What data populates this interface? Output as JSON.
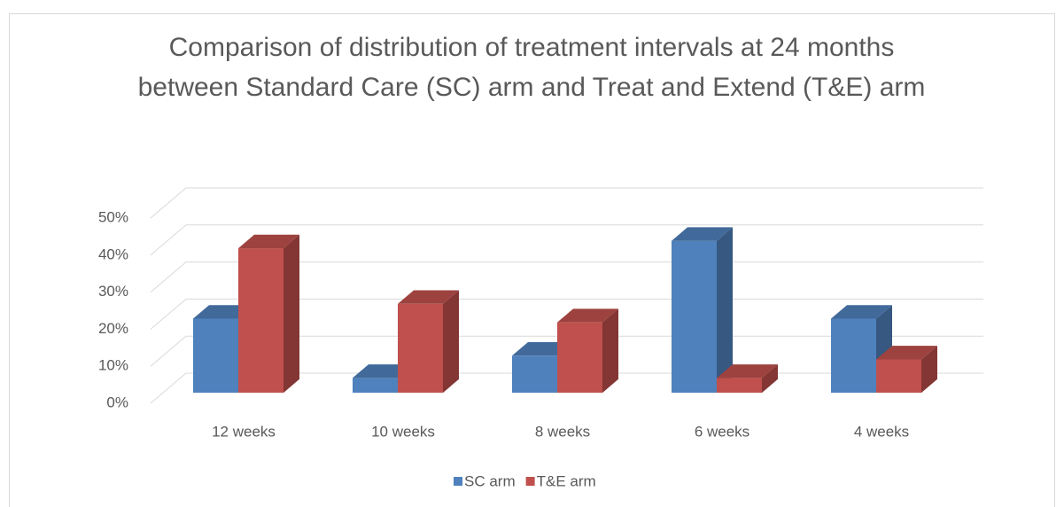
{
  "chart_data": {
    "type": "bar3d",
    "title": "Comparison of distribution of treatment intervals at 24 months between Standard Care (SC) arm and Treat and Extend (T&E) arm",
    "categories": [
      "12 weeks",
      "10 weeks",
      "8 weeks",
      "6 weeks",
      "4 weeks"
    ],
    "series": [
      {
        "name": "SC arm",
        "color": "#4f81bd",
        "values": [
          20,
          4,
          10,
          41,
          20
        ]
      },
      {
        "name": "T&E arm",
        "color": "#c0504d",
        "values": [
          39,
          24,
          19,
          4,
          9
        ]
      }
    ],
    "ylim": [
      0,
      50
    ],
    "yticks": [
      {
        "value": 0,
        "label": "0%"
      },
      {
        "value": 10,
        "label": "10%"
      },
      {
        "value": 20,
        "label": "20%"
      },
      {
        "value": 30,
        "label": "30%"
      },
      {
        "value": 40,
        "label": "40%"
      },
      {
        "value": 50,
        "label": "50%"
      }
    ],
    "grid": true,
    "legend": "bottom"
  }
}
